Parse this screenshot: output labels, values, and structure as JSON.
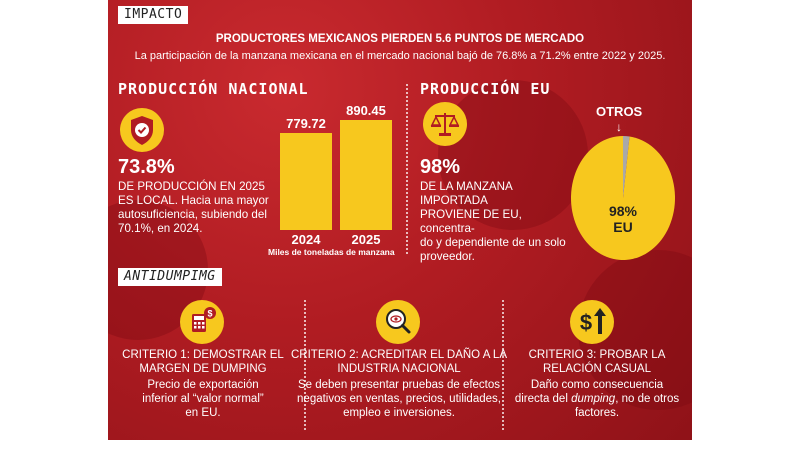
{
  "header_tag": "IMPACTO",
  "headline": "PRODUCTORES MEXICANOS PIERDEN 5.6 PUNTOS DE MERCADO",
  "subline": "La participación de la manzana mexicana en el mercado nacional bajó de 76.8% a 71.2% entre 2022 y 2025.",
  "produccion_nacional": {
    "title": "PRODUCCIÓN NACIONAL",
    "icon": "shield-check-icon",
    "stat": "73.8%",
    "text_lines": [
      "DE PRODUCCIÓN EN 2025",
      "ES LOCAL. Hacia una mayor",
      "autosuficiencia, subiendo del",
      "70.1%, en 2024."
    ]
  },
  "chart_data": {
    "type": "bar",
    "categories": [
      "2024",
      "2025"
    ],
    "values": [
      779.72,
      890.45
    ],
    "value_labels": [
      "779.72",
      "890.45"
    ],
    "xlabel": "Miles de toneladas de manzana",
    "ylim": [
      0,
      1000
    ],
    "colors": [
      "#f7c81e",
      "#f7c81e"
    ]
  },
  "produccion_eu": {
    "title": "PRODUCCIÓN EU",
    "icon": "scale-icon",
    "stat": "98%",
    "text_lines": [
      "DE LA MANZANA IMPORTADA",
      "PROVIENE DE EU, concentra-",
      "do y dependiente de un solo",
      "proveedor."
    ],
    "pie": {
      "slices": [
        {
          "label": "EU",
          "value": 98,
          "color": "#f7c81e"
        },
        {
          "label": "OTROS",
          "value": 2,
          "color": "#a9a9a9"
        }
      ],
      "center_value": "98%",
      "center_label": "EU",
      "callout": "OTROS",
      "arrow": "↓"
    }
  },
  "antidumping": {
    "tag": "ANTIDUMPIMG",
    "criteria": [
      {
        "icon": "calculator-dollar-icon",
        "title_lines": [
          "CRITERIO 1: DEMOSTRAR EL",
          "MARGEN DE DUMPING"
        ],
        "body_lines": [
          "Precio de exportación",
          "inferior al “valor normal”",
          "en EU."
        ]
      },
      {
        "icon": "magnifier-eye-icon",
        "title_lines": [
          "CRITERIO 2: ACREDITAR EL DAÑO A LA",
          "INDUSTRIA NACIONAL"
        ],
        "body_lines": [
          "Se deben presentar pruebas de efectos",
          "negativos en ventas, precios, utilidades,",
          "empleo e inversiones."
        ]
      },
      {
        "icon": "dollar-arrow-up-icon",
        "title_lines": [
          "CRITERIO 3: PROBAR LA",
          "RELACIÓN CASUAL"
        ],
        "body_lines": [
          "Daño como consecuencia",
          "directa del dumping, no de otros",
          "factores."
        ]
      }
    ]
  }
}
